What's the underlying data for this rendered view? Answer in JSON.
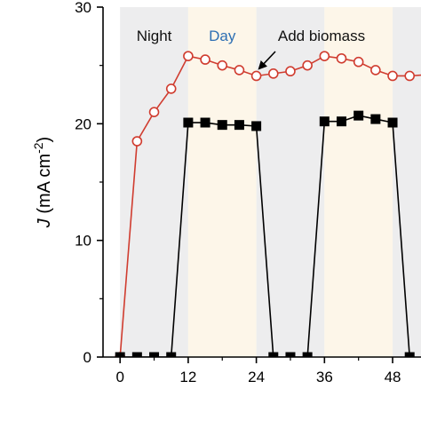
{
  "chart_data": {
    "type": "line",
    "xlabel": "",
    "ylabel_italic": "J",
    "ylabel_unit": "(mA cm",
    "ylabel_exp": "-2",
    "ylabel_close": ")",
    "xlim": [
      -3,
      53
    ],
    "ylim": [
      0,
      30
    ],
    "xticks": [
      0,
      12,
      24,
      36,
      48
    ],
    "yticks": [
      0,
      10,
      20,
      30
    ],
    "grid": false,
    "legend": "none",
    "bands": [
      {
        "start": 0,
        "end": 12,
        "type": "night",
        "color": "#ededee"
      },
      {
        "start": 12,
        "end": 24,
        "type": "day",
        "color": "#fdf6e9"
      },
      {
        "start": 24,
        "end": 36,
        "type": "night",
        "color": "#ededee"
      },
      {
        "start": 36,
        "end": 48,
        "type": "day",
        "color": "#fdf6e9"
      },
      {
        "start": 48,
        "end": 53,
        "type": "night",
        "color": "#ededee"
      }
    ],
    "band_labels": [
      {
        "text": "Night",
        "x": 6,
        "color": "#111111"
      },
      {
        "text": "Day",
        "x": 18,
        "color": "#2e6fb3"
      }
    ],
    "annotation": {
      "text": "Add biomass",
      "x": 24.2,
      "y": 24.2
    },
    "series": [
      {
        "marker": "open-circle",
        "color": "#d03c2f",
        "fill": "#ffffff",
        "x": [
          0,
          3,
          6,
          9,
          12,
          15,
          18,
          21,
          24,
          27,
          30,
          33,
          36,
          39,
          42,
          45,
          48,
          51,
          54
        ],
        "y": [
          0,
          18.5,
          21,
          23,
          25.8,
          25.5,
          25,
          24.6,
          24.1,
          24.3,
          24.5,
          25,
          25.8,
          25.6,
          25.3,
          24.6,
          24.1,
          24.1,
          24.2
        ]
      },
      {
        "marker": "filled-square",
        "color": "#000000",
        "fill": "#000000",
        "x": [
          0,
          3,
          6,
          9,
          12,
          15,
          18,
          21,
          24,
          27,
          30,
          33,
          36,
          39,
          42,
          45,
          48,
          51
        ],
        "y": [
          0,
          0,
          0,
          0,
          20.1,
          20.1,
          19.9,
          19.9,
          19.8,
          0,
          0,
          0,
          20.2,
          20.2,
          20.7,
          20.4,
          20.1,
          0
        ]
      }
    ]
  }
}
